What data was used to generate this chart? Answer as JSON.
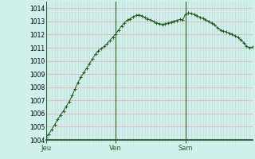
{
  "bg_color": "#d0f0eb",
  "plot_bg_color": "#d0f0eb",
  "grid_color_h": "#e8a0a0",
  "grid_color_v": "#c8d8d8",
  "line_color": "#1a5c1a",
  "marker_color": "#1a5c1a",
  "vline_color": "#2a5c2a",
  "xaxis_line_color": "#1a4c1a",
  "ylim": [
    1004,
    1014.5
  ],
  "ytick_vals": [
    1004,
    1005,
    1006,
    1007,
    1008,
    1009,
    1010,
    1011,
    1012,
    1013,
    1014
  ],
  "day_labels": [
    "Jeu",
    "Ven",
    "Sam"
  ],
  "day_positions": [
    0,
    24,
    48
  ],
  "n_total": 72,
  "values": [
    1004.2,
    1004.45,
    1004.8,
    1005.15,
    1005.55,
    1005.9,
    1006.2,
    1006.55,
    1006.9,
    1007.35,
    1007.85,
    1008.35,
    1008.75,
    1009.1,
    1009.45,
    1009.8,
    1010.15,
    1010.5,
    1010.75,
    1010.95,
    1011.1,
    1011.3,
    1011.55,
    1011.8,
    1012.05,
    1012.35,
    1012.65,
    1012.9,
    1013.1,
    1013.2,
    1013.35,
    1013.45,
    1013.5,
    1013.42,
    1013.3,
    1013.2,
    1013.1,
    1013.0,
    1012.9,
    1012.82,
    1012.78,
    1012.82,
    1012.88,
    1012.95,
    1013.02,
    1013.08,
    1013.15,
    1013.1,
    1013.55,
    1013.65,
    1013.6,
    1013.52,
    1013.42,
    1013.32,
    1013.22,
    1013.1,
    1013.0,
    1012.88,
    1012.72,
    1012.52,
    1012.35,
    1012.25,
    1012.2,
    1012.1,
    1012.02,
    1011.9,
    1011.78,
    1011.6,
    1011.38,
    1011.1,
    1011.0,
    1011.05
  ]
}
